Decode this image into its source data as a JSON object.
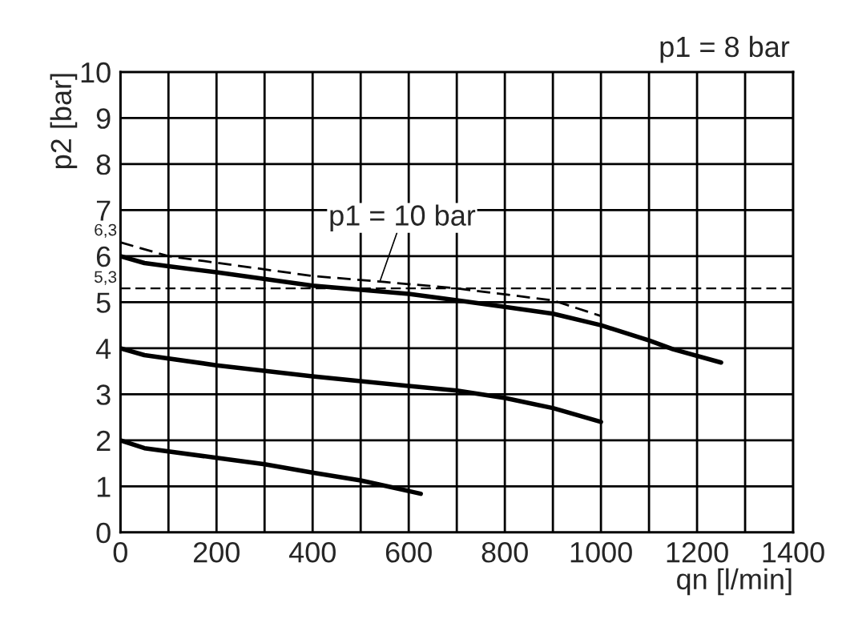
{
  "chart_data": {
    "type": "line",
    "xlabel": "qn [l/min]",
    "ylabel": "p2 [bar]",
    "xlim": [
      0,
      1400
    ],
    "ylim": [
      0,
      10
    ],
    "xticks": [
      0,
      {
        "value": 100,
        "label": null
      },
      200,
      {
        "value": 300,
        "label": null
      },
      400,
      {
        "value": 500,
        "label": null
      },
      600,
      {
        "value": 700,
        "label": null
      },
      800,
      {
        "value": 900,
        "label": null
      },
      1000,
      {
        "value": 1100,
        "label": null
      },
      1200,
      {
        "value": 1300,
        "label": null
      },
      1400
    ],
    "yticks": [
      0,
      1,
      2,
      3,
      4,
      5,
      6,
      7,
      8,
      9,
      10
    ],
    "grid": true,
    "marker": "none",
    "series": [
      {
        "color": "#000000",
        "line_style": "dashed",
        "x": [
          0,
          100,
          400,
          550,
          700,
          900,
          1000
        ],
        "values": [
          6.3,
          6.0,
          5.57,
          5.44,
          5.3,
          5.04,
          4.7
        ]
      },
      {
        "color": "#000000",
        "line_style": "solid",
        "x": [
          0,
          50,
          100,
          200,
          400,
          600,
          700,
          800,
          900,
          1000,
          1100,
          1150,
          1250
        ],
        "values": [
          6.0,
          5.85,
          5.78,
          5.65,
          5.36,
          5.18,
          5.04,
          4.9,
          4.75,
          4.5,
          4.17,
          3.98,
          3.69
        ]
      },
      {
        "color": "#000000",
        "line_style": "solid",
        "x": [
          0,
          50,
          200,
          400,
          600,
          700,
          800,
          900,
          1000
        ],
        "values": [
          4.0,
          3.85,
          3.63,
          3.39,
          3.18,
          3.08,
          2.92,
          2.7,
          2.4
        ]
      },
      {
        "color": "#000000",
        "line_style": "solid",
        "x": [
          0,
          50,
          200,
          300,
          400,
          500,
          625
        ],
        "values": [
          2.0,
          1.83,
          1.62,
          1.48,
          1.3,
          1.13,
          0.84
        ]
      }
    ],
    "ref_lines": [
      {
        "axis": "y",
        "value": 5.3,
        "label": "5,3",
        "color": "#000000",
        "line_style": "dashed"
      }
    ],
    "annotations": [
      "p1 = 8 bar",
      {
        "text": "p1 = 10 bar",
        "x": 540,
        "y": 5.45
      },
      {
        "text": "6,3",
        "x": 0,
        "y": 6.3
      }
    ]
  }
}
